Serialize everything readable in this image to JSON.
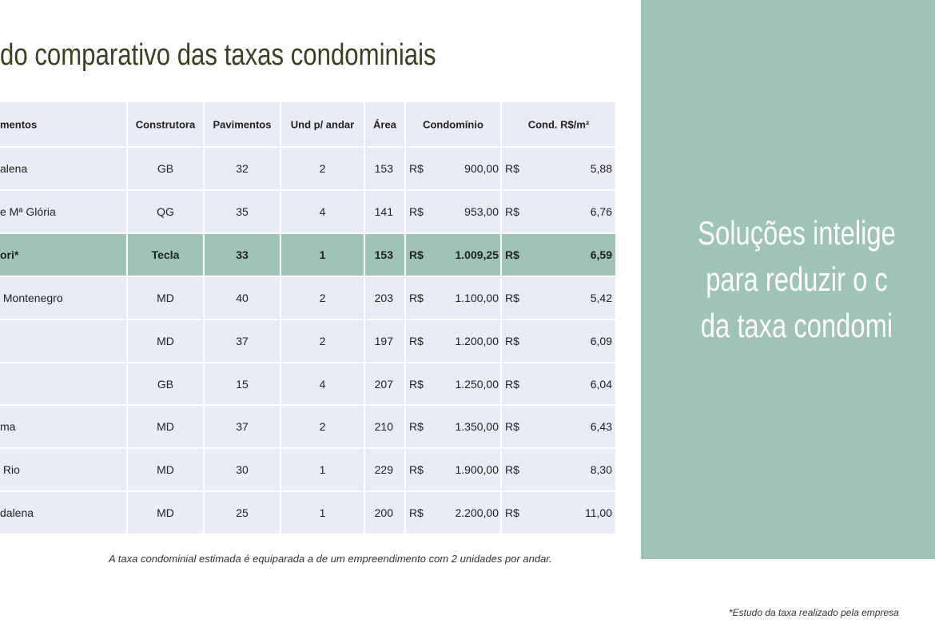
{
  "title": "do comparativo das taxas condominiais",
  "table": {
    "header": [
      "mentos",
      "Construtora",
      "Pavimentos",
      "Und p/ andar",
      "Área",
      "Condomínio",
      "Cond. R$/m²"
    ],
    "rows": [
      [
        "alena",
        "GB",
        "32",
        "2",
        "153",
        "R$",
        "900,00",
        "R$",
        "5,88"
      ],
      [
        "e Mª Glória",
        "QG",
        "35",
        "4",
        "141",
        "R$",
        "953,00",
        "R$",
        "6,76"
      ],
      [
        "ori*",
        "Tecla",
        "33",
        "1",
        "153",
        "R$",
        "1.009,25",
        "R$",
        "6,59"
      ],
      [
        " Montenegro",
        "MD",
        "40",
        "2",
        "203",
        "R$",
        "1.100,00",
        "R$",
        "5,42"
      ],
      [
        null,
        "MD",
        "37",
        "2",
        "197",
        "R$",
        "1.200,00",
        "R$",
        "6,09"
      ],
      [
        null,
        "GB",
        "15",
        "4",
        "207",
        "R$",
        "1.250,00",
        "R$",
        "6,04"
      ],
      [
        "ma",
        "MD",
        "37",
        "2",
        "210",
        "R$",
        "1.350,00",
        "R$",
        "6,43"
      ],
      [
        " Rio",
        "MD",
        "30",
        "1",
        "229",
        "R$",
        "1.900,00",
        "R$",
        "8,30"
      ],
      [
        "dalena",
        "MD",
        "25",
        "1",
        "200",
        "R$",
        "2.200,00",
        "R$",
        "11,00"
      ]
    ],
    "highlight_row": 2
  },
  "table_note": "A taxa condominial estimada é equiparada a de um empreendimento com 2 unidades por andar.",
  "panel": {
    "lines": [
      "Soluções intelige",
      "para reduzir o c",
      "da taxa condomi"
    ]
  },
  "footnote": "*Estudo da taxa realizado pela empresa"
}
